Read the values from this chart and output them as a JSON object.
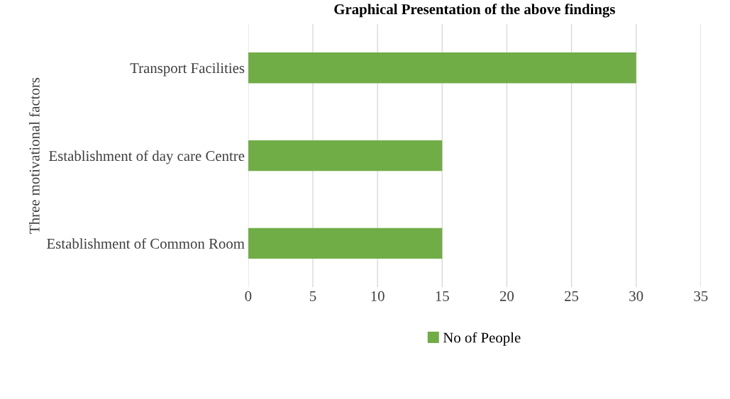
{
  "chart_data": {
    "type": "bar",
    "orientation": "horizontal",
    "title": "Graphical Presentation of the above findings",
    "ylabel": "Three motivational factors",
    "categories": [
      "Transport Facilities",
      "Establishment of day care Centre",
      "Establishment of Common Room"
    ],
    "series": [
      {
        "name": "No of People",
        "color": "#70ad47",
        "values": [
          30,
          15,
          15
        ]
      }
    ],
    "xlim": [
      0,
      35
    ],
    "xticks": [
      0,
      5,
      10,
      15,
      20,
      25,
      30,
      35
    ],
    "grid": "x",
    "legend": "bottom"
  }
}
